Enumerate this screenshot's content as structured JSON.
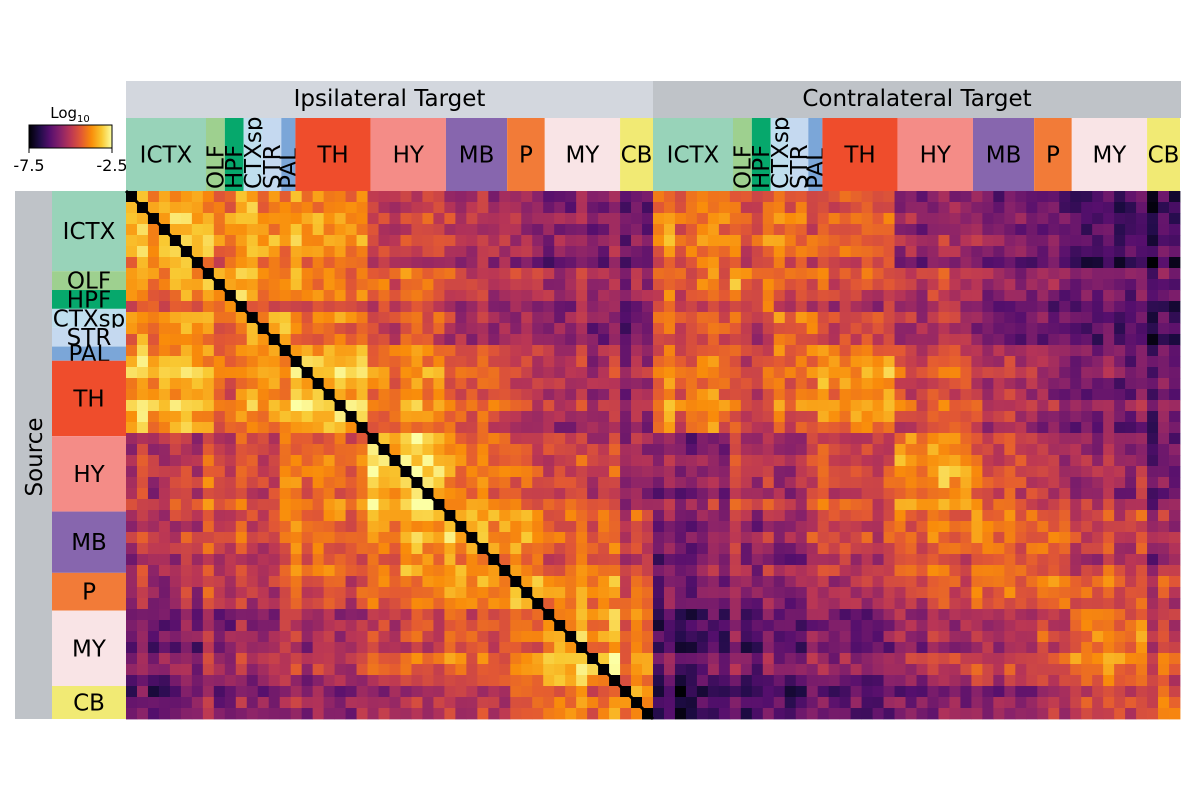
{
  "chart_data": {
    "type": "heatmap",
    "title": "",
    "row_axis_label": "Source",
    "column_groups": [
      "Ipsilateral Target",
      "Contralateral Target"
    ],
    "colorbar": {
      "title": "Log",
      "title_subscript": "10",
      "min": -7.5,
      "max": -2.5,
      "tick_labels": [
        "-7.5",
        "-2.5"
      ],
      "colormap": "inferno"
    },
    "regions": [
      {
        "name": "ICTX",
        "color": "#98d3b9",
        "size": 17
      },
      {
        "name": "OLF",
        "color": "#9ed08f",
        "size": 4
      },
      {
        "name": "HPF",
        "color": "#06a86c",
        "size": 4
      },
      {
        "name": "CTXsp",
        "color": "#bfdfee",
        "size": 4
      },
      {
        "name": "STR",
        "color": "#c5d9f0",
        "size": 4
      },
      {
        "name": "PAL",
        "color": "#7ba6d8",
        "size": 3
      },
      {
        "name": "TH",
        "color": "#ef4d2c",
        "size": 16
      },
      {
        "name": "HY",
        "color": "#f48c87",
        "size": 16
      },
      {
        "name": "MB",
        "color": "#8766ae",
        "size": 13
      },
      {
        "name": "P",
        "color": "#f27b38",
        "size": 8
      },
      {
        "name": "MY",
        "color": "#f9e4e6",
        "size": 16
      },
      {
        "name": "CB",
        "color": "#f1ea74",
        "size": 7
      }
    ],
    "blocks_mean_log10": [
      [
        -3.3,
        -3.8,
        -3.6,
        -3.4,
        -3.6,
        -4.2,
        -3.6,
        -4.8,
        -5.0,
        -5.3,
        -5.6,
        -5.8
      ],
      [
        -3.7,
        -3.3,
        -3.8,
        -3.8,
        -3.9,
        -4.3,
        -4.0,
        -4.4,
        -4.9,
        -5.1,
        -5.4,
        -5.7
      ],
      [
        -3.9,
        -3.9,
        -3.5,
        -4.0,
        -4.2,
        -4.5,
        -4.2,
        -4.5,
        -5.0,
        -5.2,
        -5.3,
        -5.6
      ],
      [
        -3.6,
        -3.9,
        -4.0,
        -3.3,
        -3.5,
        -4.0,
        -3.8,
        -4.5,
        -5.1,
        -5.3,
        -5.6,
        -5.8
      ],
      [
        -3.7,
        -4.0,
        -4.2,
        -3.6,
        -3.4,
        -3.7,
        -3.9,
        -4.5,
        -5.0,
        -5.2,
        -5.5,
        -5.7
      ],
      [
        -3.9,
        -4.2,
        -4.4,
        -3.9,
        -3.7,
        -3.5,
        -3.8,
        -4.3,
        -4.8,
        -5.0,
        -5.4,
        -5.6
      ],
      [
        -3.4,
        -4.0,
        -4.1,
        -3.7,
        -3.7,
        -4.0,
        -3.2,
        -4.0,
        -4.4,
        -4.9,
        -5.2,
        -5.4
      ],
      [
        -4.8,
        -4.3,
        -4.4,
        -4.7,
        -4.6,
        -4.3,
        -4.0,
        -3.0,
        -3.8,
        -4.3,
        -4.6,
        -5.2
      ],
      [
        -5.1,
        -4.8,
        -4.9,
        -5.1,
        -4.9,
        -4.7,
        -4.3,
        -3.9,
        -3.6,
        -3.8,
        -4.3,
        -4.8
      ],
      [
        -5.3,
        -5.0,
        -5.1,
        -5.3,
        -5.2,
        -4.9,
        -4.7,
        -4.3,
        -3.8,
        -3.4,
        -3.9,
        -4.3
      ],
      [
        -5.6,
        -5.3,
        -5.3,
        -5.5,
        -5.4,
        -5.2,
        -5.1,
        -4.6,
        -4.2,
        -3.9,
        -3.3,
        -4.0
      ],
      [
        -5.9,
        -5.7,
        -5.6,
        -5.8,
        -5.7,
        -5.6,
        -5.4,
        -5.2,
        -4.8,
        -4.3,
        -4.0,
        -3.6
      ]
    ],
    "contralateral_offset_log10": -0.6,
    "diagonal_value": "min (self-projections blanked)"
  }
}
